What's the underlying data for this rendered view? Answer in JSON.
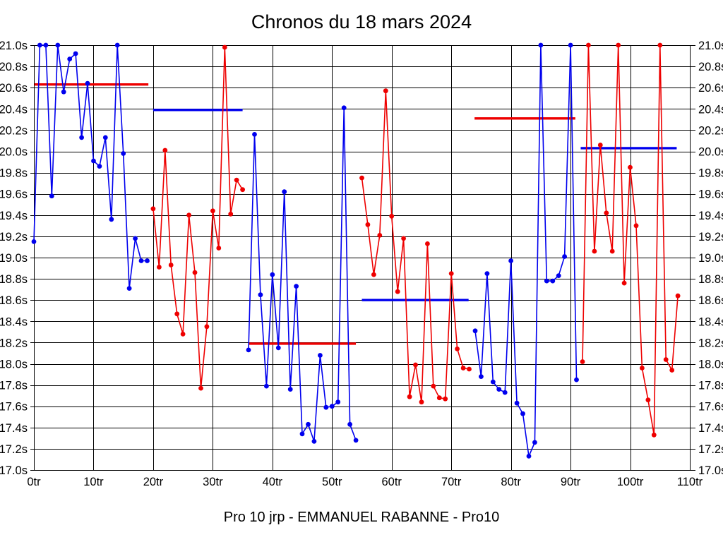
{
  "title": "Chronos du 18 mars 2024",
  "footer": "Pro 10 jrp - EMMANUEL RABANNE - Pro10",
  "colors": {
    "blue": "#0000ee",
    "red": "#ee0000",
    "grid": "#000000",
    "background": "#ffffff"
  },
  "chart_data": {
    "type": "line",
    "title": "Chronos du 18 mars 2024",
    "grid": true,
    "x_axis": {
      "min": 0,
      "max": 110,
      "tick_step": 10,
      "unit": "tr"
    },
    "y_axis": {
      "min": 17.0,
      "max": 21.0,
      "tick_step": 0.2,
      "unit": "s"
    },
    "x_tick_labels": [
      "0tr",
      "10tr",
      "20tr",
      "30tr",
      "40tr",
      "50tr",
      "60tr",
      "70tr",
      "80tr",
      "90tr",
      "100tr",
      "110tr"
    ],
    "y_tick_labels": [
      "21.0s",
      "20.8s",
      "20.6s",
      "20.4s",
      "20.2s",
      "20.0s",
      "19.8s",
      "19.6s",
      "19.4s",
      "19.2s",
      "19.0s",
      "18.8s",
      "18.6s",
      "18.4s",
      "18.2s",
      "18.0s",
      "17.8s",
      "17.6s",
      "17.4s",
      "17.2s",
      "17.0s"
    ],
    "series": [
      {
        "name": "stint-1",
        "color": "blue",
        "start_lap": 0,
        "values": [
          19.15,
          21.0,
          21.0,
          19.58,
          21.0,
          20.56,
          20.87,
          20.92,
          20.13,
          20.64,
          19.91,
          19.86,
          20.13,
          19.36,
          21.0,
          19.98,
          18.71,
          19.18,
          18.97,
          18.97
        ]
      },
      {
        "name": "stint-2",
        "color": "red",
        "start_lap": 20,
        "values": [
          19.46,
          18.91,
          20.01,
          18.93,
          18.47,
          18.28,
          19.4,
          18.86,
          17.77,
          18.35,
          19.44,
          19.09,
          20.98,
          19.41,
          19.73,
          19.64
        ]
      },
      {
        "name": "stint-3",
        "color": "blue",
        "start_lap": 36,
        "values": [
          18.13,
          20.16,
          18.65,
          17.79,
          18.84,
          18.15,
          19.62,
          17.76,
          18.73,
          17.34,
          17.43,
          17.27,
          18.08,
          17.59,
          17.6,
          17.64,
          20.41,
          17.43,
          17.28
        ]
      },
      {
        "name": "stint-4",
        "color": "red",
        "start_lap": 55,
        "values": [
          19.75,
          19.31,
          18.84,
          19.21,
          20.57,
          19.39,
          18.68,
          19.18,
          17.69,
          17.99,
          17.64,
          19.13,
          17.79,
          17.68,
          17.67,
          18.85,
          18.14,
          17.96,
          17.95
        ]
      },
      {
        "name": "stint-5",
        "color": "blue",
        "start_lap": 74,
        "values": [
          18.31,
          17.88,
          18.85,
          17.83,
          17.76,
          17.73,
          18.97,
          17.63,
          17.53,
          17.13,
          17.26,
          21.0,
          18.78,
          18.78,
          18.83,
          19.01,
          21.0,
          17.85
        ]
      },
      {
        "name": "stint-6",
        "color": "red",
        "start_lap": 92,
        "values": [
          18.02,
          21.0,
          19.06,
          20.06,
          19.42,
          19.06,
          21.0,
          18.76,
          19.85,
          19.3,
          17.96,
          17.66,
          17.33,
          21.0,
          18.04,
          17.94,
          18.64
        ]
      }
    ],
    "average_lines": [
      {
        "name": "avg-stint-1",
        "color": "red",
        "value": 20.63,
        "from_lap": 0.1,
        "to_lap": 19.2
      },
      {
        "name": "avg-stint-2",
        "color": "blue",
        "value": 20.39,
        "from_lap": 20.0,
        "to_lap": 35.0
      },
      {
        "name": "avg-stint-3",
        "color": "red",
        "value": 18.19,
        "from_lap": 36.0,
        "to_lap": 54.0
      },
      {
        "name": "avg-stint-4",
        "color": "blue",
        "value": 18.6,
        "from_lap": 55.0,
        "to_lap": 72.9
      },
      {
        "name": "avg-stint-5",
        "color": "red",
        "value": 20.31,
        "from_lap": 73.9,
        "to_lap": 90.8
      },
      {
        "name": "avg-stint-6",
        "color": "blue",
        "value": 20.03,
        "from_lap": 91.7,
        "to_lap": 107.8
      }
    ],
    "legend_position": "none"
  }
}
